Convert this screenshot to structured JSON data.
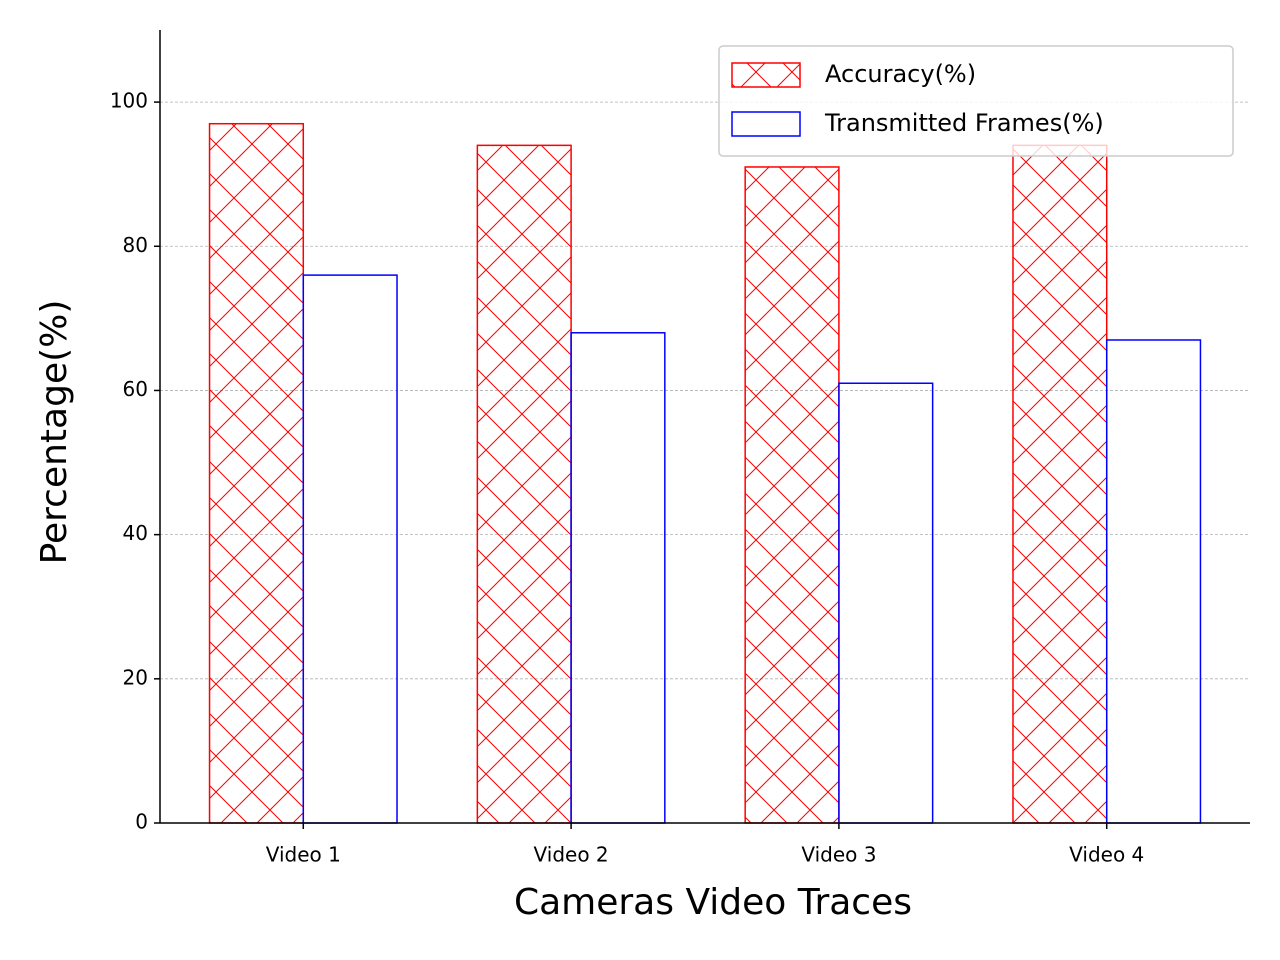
{
  "chart_data": {
    "type": "bar",
    "x_label": "Cameras Video Traces",
    "y_label": "Percentage(%)",
    "categories": [
      "Video 1",
      "Video 2",
      "Video 3",
      "Video 4"
    ],
    "series": [
      {
        "name": "Accuracy(%)",
        "color": "red",
        "hatch": "x",
        "values": [
          97,
          94,
          91,
          94
        ]
      },
      {
        "name": "Transmitted Frames(%)",
        "color": "blue",
        "values": [
          76,
          68,
          61,
          67
        ]
      }
    ],
    "ylim": [
      0,
      110
    ],
    "yticks": [
      0,
      20,
      40,
      60,
      80,
      100
    ],
    "grid": true,
    "legend": "upper right"
  }
}
